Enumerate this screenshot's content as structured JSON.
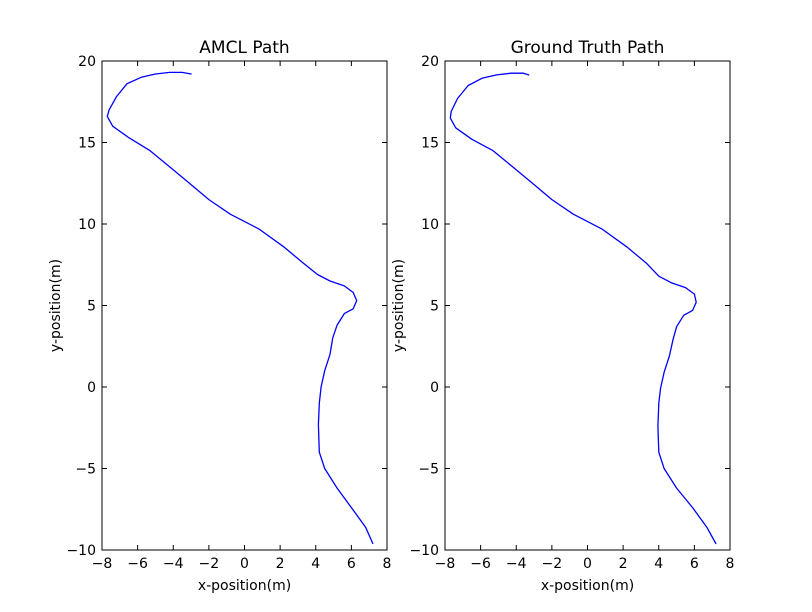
{
  "chart_data": [
    {
      "type": "line",
      "title": "AMCL Path",
      "xlabel": "x-position(m)",
      "ylabel": "y-position(m)",
      "xlim": [
        -8,
        8
      ],
      "ylim": [
        -10,
        20
      ],
      "xticks": [
        -8,
        -6,
        -4,
        -2,
        0,
        2,
        4,
        6,
        8
      ],
      "yticks": [
        -10,
        -5,
        0,
        5,
        10,
        15,
        20
      ],
      "xtick_labels": [
        "−8",
        "−6",
        "−4",
        "−2",
        "0",
        "2",
        "4",
        "6",
        "8"
      ],
      "ytick_labels": [
        "−10",
        "−5",
        "0",
        "5",
        "10",
        "15",
        "20"
      ],
      "grid": false,
      "series": [
        {
          "color": "#0000ff",
          "x": [
            -3.0,
            -3.5,
            -4.2,
            -5.0,
            -5.8,
            -6.6,
            -7.2,
            -7.6,
            -7.7,
            -7.4,
            -6.5,
            -5.3,
            -4.2,
            -3.2,
            -2.0,
            -0.8,
            0.8,
            2.2,
            3.3,
            4.1,
            4.8,
            5.6,
            6.1,
            6.3,
            6.1,
            5.6,
            5.2,
            4.95,
            4.8,
            4.5,
            4.3,
            4.2,
            4.15,
            4.2,
            4.5,
            5.2,
            6.0,
            6.8,
            7.2
          ],
          "y": [
            19.2,
            19.3,
            19.3,
            19.2,
            19.0,
            18.6,
            17.8,
            17.0,
            16.6,
            16.0,
            15.3,
            14.5,
            13.5,
            12.6,
            11.5,
            10.6,
            9.7,
            8.6,
            7.6,
            6.9,
            6.5,
            6.2,
            5.8,
            5.3,
            4.8,
            4.5,
            3.8,
            3.0,
            2.0,
            1.0,
            0.0,
            -1.0,
            -2.3,
            -4.0,
            -5.0,
            -6.2,
            -7.4,
            -8.6,
            -9.6
          ]
        }
      ]
    },
    {
      "type": "line",
      "title": "Ground Truth Path",
      "xlabel": "x-position(m)",
      "ylabel": "y-position(m)",
      "xlim": [
        -8,
        8
      ],
      "ylim": [
        -10,
        20
      ],
      "xticks": [
        -8,
        -6,
        -4,
        -2,
        0,
        2,
        4,
        6,
        8
      ],
      "yticks": [
        -10,
        -5,
        0,
        5,
        10,
        15,
        20
      ],
      "xtick_labels": [
        "−8",
        "−6",
        "−4",
        "−2",
        "0",
        "2",
        "4",
        "6",
        "8"
      ],
      "ytick_labels": [
        "−10",
        "−5",
        "0",
        "5",
        "10",
        "15",
        "20"
      ],
      "grid": false,
      "series": [
        {
          "color": "#0000ff",
          "x": [
            -3.3,
            -3.6,
            -4.3,
            -5.1,
            -5.9,
            -6.7,
            -7.3,
            -7.65,
            -7.7,
            -7.4,
            -6.5,
            -5.3,
            -4.2,
            -3.2,
            -2.0,
            -0.8,
            0.8,
            2.2,
            3.3,
            4.0,
            4.7,
            5.5,
            6.0,
            6.1,
            5.9,
            5.4,
            5.0,
            4.8,
            4.6,
            4.3,
            4.1,
            4.0,
            3.95,
            4.0,
            4.3,
            5.0,
            5.9,
            6.7,
            7.2
          ],
          "y": [
            19.15,
            19.25,
            19.25,
            19.15,
            18.95,
            18.5,
            17.7,
            16.9,
            16.5,
            15.9,
            15.2,
            14.5,
            13.5,
            12.6,
            11.5,
            10.6,
            9.7,
            8.6,
            7.6,
            6.8,
            6.4,
            6.1,
            5.7,
            5.2,
            4.7,
            4.4,
            3.7,
            2.9,
            1.9,
            0.9,
            -0.1,
            -1.0,
            -2.4,
            -4.0,
            -5.0,
            -6.2,
            -7.4,
            -8.6,
            -9.6
          ]
        }
      ]
    }
  ]
}
